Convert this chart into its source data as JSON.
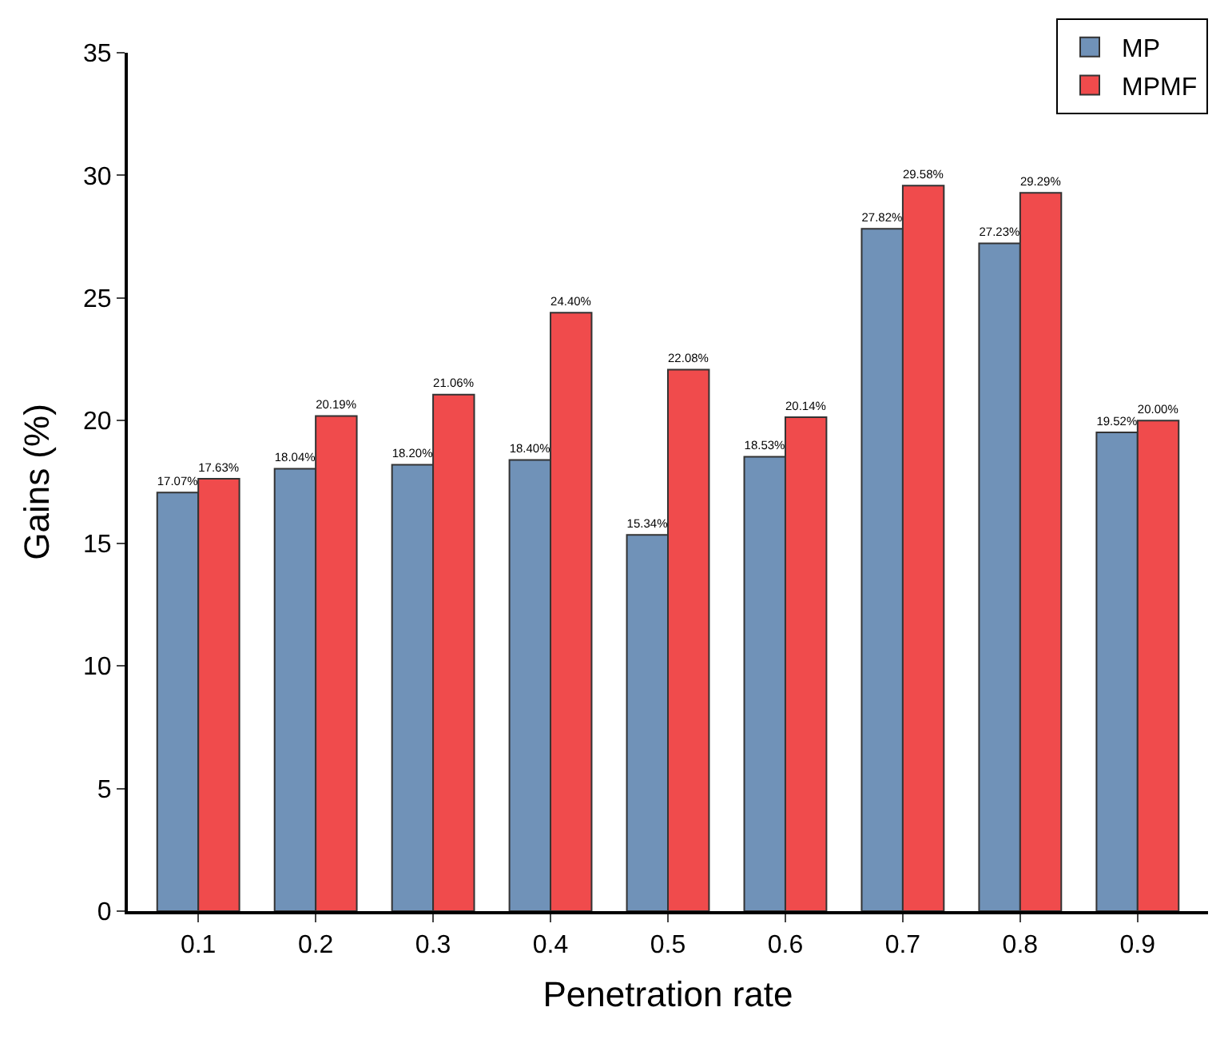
{
  "chart_data": {
    "type": "bar",
    "xlabel": "Penetration rate",
    "ylabel": "Gains (%)",
    "categories": [
      "0.1",
      "0.2",
      "0.3",
      "0.4",
      "0.5",
      "0.6",
      "0.7",
      "0.8",
      "0.9"
    ],
    "series": [
      {
        "name": "MP",
        "color": "#7092b8",
        "values": [
          17.07,
          18.04,
          18.2,
          18.4,
          15.34,
          18.53,
          27.82,
          27.23,
          19.52
        ],
        "value_labels": [
          "17.07%",
          "18.04%",
          "18.20%",
          "18.40%",
          "15.34%",
          "18.53%",
          "27.82%",
          "27.23%",
          "19.52%"
        ]
      },
      {
        "name": "MPMF",
        "color": "#f04b4c",
        "values": [
          17.63,
          20.19,
          21.06,
          24.4,
          22.08,
          20.14,
          29.58,
          29.29,
          20.0
        ],
        "value_labels": [
          "17.63%",
          "20.19%",
          "21.06%",
          "24.40%",
          "22.08%",
          "20.14%",
          "29.58%",
          "29.29%",
          "20.00%"
        ]
      }
    ],
    "ylim": [
      0,
      35
    ],
    "yticks": [
      0,
      5,
      10,
      15,
      20,
      25,
      30,
      35
    ],
    "legend": "top right"
  }
}
